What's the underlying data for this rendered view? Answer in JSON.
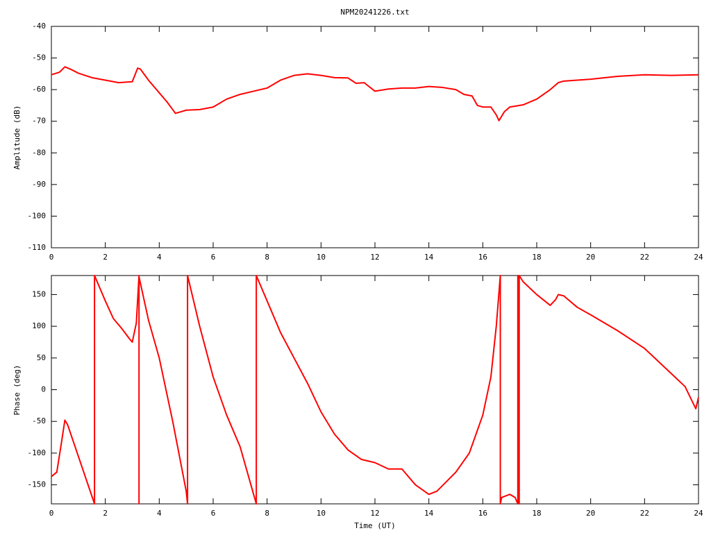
{
  "chart_data": [
    {
      "type": "line",
      "title": "NPM20241226.txt",
      "ylabel": "Amplitude (dB)",
      "xlim": [
        0,
        24
      ],
      "xticks": [
        0,
        2,
        4,
        6,
        8,
        10,
        12,
        14,
        16,
        18,
        20,
        22,
        24
      ],
      "ylim": [
        -110,
        -40
      ],
      "yticks": [
        -110,
        -100,
        -90,
        -80,
        -70,
        -60,
        -50,
        -40
      ],
      "grid": false,
      "series": [
        {
          "color": "#ff0000",
          "x": [
            0,
            0.3,
            0.5,
            0.7,
            1,
            1.5,
            2,
            2.5,
            2.8,
            3,
            3.2,
            3.3,
            3.6,
            4,
            4.3,
            4.6,
            4.8,
            5,
            5.5,
            6,
            6.5,
            7,
            7.5,
            8,
            8.5,
            9,
            9.5,
            10,
            10.5,
            11,
            11.3,
            11.6,
            12,
            12.5,
            13,
            13.5,
            14,
            14.5,
            15,
            15.3,
            15.6,
            15.8,
            16,
            16.3,
            16.5,
            16.6,
            16.8,
            17,
            17.5,
            18,
            18.5,
            18.8,
            19,
            20,
            21,
            22,
            23,
            24
          ],
          "values": [
            -55.3,
            -54.5,
            -52.8,
            -53.5,
            -54.8,
            -56.2,
            -57,
            -57.8,
            -57.6,
            -57.5,
            -53.2,
            -53.5,
            -57,
            -61,
            -64,
            -67.5,
            -67,
            -66.5,
            -66.3,
            -65.5,
            -63,
            -61.5,
            -60.5,
            -59.5,
            -57,
            -55.5,
            -55,
            -55.5,
            -56.2,
            -56.3,
            -58,
            -57.8,
            -60.5,
            -59.8,
            -59.5,
            -59.5,
            -59,
            -59.3,
            -60,
            -61.5,
            -62,
            -65,
            -65.5,
            -65.5,
            -68,
            -69.8,
            -67,
            -65.5,
            -64.8,
            -63,
            -60,
            -57.8,
            -57.3,
            -56.7,
            -55.8,
            -55.3,
            -55.5,
            -55.3
          ]
        }
      ]
    },
    {
      "type": "line",
      "ylabel": "Phase (deg)",
      "xlabel": "Time (UT)",
      "xlim": [
        0,
        24
      ],
      "xticks": [
        0,
        2,
        4,
        6,
        8,
        10,
        12,
        14,
        16,
        18,
        20,
        22,
        24
      ],
      "ylim": [
        -180,
        180
      ],
      "yticks": [
        -150,
        -100,
        -50,
        0,
        50,
        100,
        150
      ],
      "grid": false,
      "series": [
        {
          "color": "#ff0000",
          "x": [
            0,
            0.2,
            0.35,
            0.5,
            0.6,
            1,
            1.6,
            1.6,
            2,
            2.3,
            2.6,
            2.9,
            3,
            3.15,
            3.25,
            3.25,
            3.25,
            3.6,
            4,
            4.5,
            5,
            5.05,
            5.05,
            5.5,
            6,
            6.5,
            7,
            7.5,
            7.6,
            7.6,
            8,
            8.5,
            9,
            9.5,
            10,
            10.5,
            11,
            11.5,
            12,
            12.5,
            13,
            13.5,
            14,
            14.3,
            15,
            15.5,
            16,
            16.3,
            16.5,
            16.65,
            16.65,
            16.7,
            17,
            17.2,
            17.3,
            17.3,
            17.35,
            17.35,
            17.5,
            18,
            18.5,
            18.7,
            18.8,
            19,
            19.5,
            20,
            21,
            22,
            23,
            23.5,
            23.9,
            24
          ],
          "values": [
            -137,
            -130,
            -90,
            -48,
            -55,
            -105,
            -180,
            180,
            140,
            112,
            97,
            80,
            75,
            105,
            180,
            -180,
            178,
            110,
            50,
            -50,
            -160,
            -180,
            180,
            100,
            20,
            -40,
            -90,
            -165,
            -180,
            180,
            140,
            90,
            50,
            10,
            -35,
            -70,
            -95,
            -110,
            -115,
            -125,
            -125,
            -150,
            -165,
            -160,
            -130,
            -100,
            -40,
            20,
            100,
            180,
            -180,
            -170,
            -165,
            -170,
            -180,
            180,
            -180,
            180,
            170,
            150,
            133,
            142,
            150,
            148,
            130,
            118,
            93,
            65,
            25,
            5,
            -30,
            -12
          ]
        }
      ]
    }
  ]
}
